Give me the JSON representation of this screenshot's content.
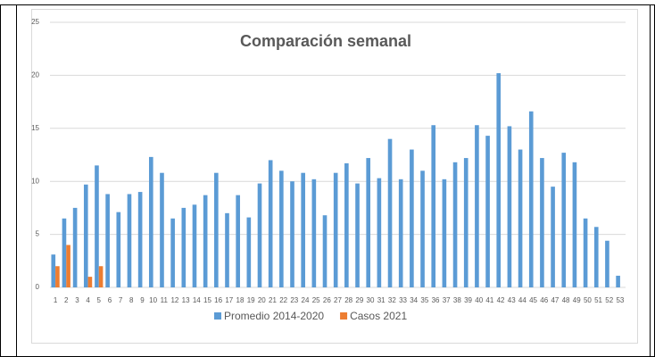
{
  "chart_data": {
    "type": "bar",
    "title": "Comparación semanal",
    "categories": [
      "1",
      "2",
      "3",
      "4",
      "5",
      "6",
      "7",
      "8",
      "9",
      "10",
      "11",
      "12",
      "13",
      "14",
      "15",
      "16",
      "17",
      "18",
      "19",
      "20",
      "21",
      "22",
      "23",
      "24",
      "25",
      "26",
      "27",
      "28",
      "29",
      "30",
      "31",
      "32",
      "33",
      "34",
      "35",
      "36",
      "37",
      "38",
      "39",
      "40",
      "41",
      "42",
      "43",
      "44",
      "45",
      "46",
      "47",
      "48",
      "49",
      "50",
      "51",
      "52",
      "53"
    ],
    "series": [
      {
        "name": "Promedio 2014-2020",
        "color": "#5b9bd5",
        "values": [
          3.1,
          6.5,
          7.5,
          9.7,
          11.5,
          8.8,
          7.1,
          8.8,
          9.0,
          12.3,
          10.8,
          6.5,
          7.5,
          7.8,
          8.7,
          10.8,
          7.0,
          8.7,
          6.6,
          9.8,
          12.0,
          11.0,
          10.0,
          10.8,
          10.2,
          6.8,
          10.8,
          11.7,
          9.8,
          12.2,
          10.3,
          14.0,
          10.2,
          13.0,
          11.0,
          15.3,
          10.2,
          11.8,
          12.2,
          15.3,
          14.3,
          20.2,
          15.2,
          13.0,
          16.6,
          12.2,
          9.5,
          12.7,
          11.8,
          6.5,
          5.7,
          4.4,
          1.1
        ]
      },
      {
        "name": "Casos 2021",
        "color": "#ed7d31",
        "values": [
          2,
          4,
          null,
          1,
          2,
          null,
          null,
          null,
          null,
          null,
          null,
          null,
          null,
          null,
          null,
          null,
          null,
          null,
          null,
          null,
          null,
          null,
          null,
          null,
          null,
          null,
          null,
          null,
          null,
          null,
          null,
          null,
          null,
          null,
          null,
          null,
          null,
          null,
          null,
          null,
          null,
          null,
          null,
          null,
          null,
          null,
          null,
          null,
          null,
          null,
          null,
          null,
          null
        ]
      }
    ],
    "ylim": [
      0,
      25
    ],
    "yticks": [
      0,
      5,
      10,
      15,
      20,
      25
    ],
    "grid": true,
    "legend": "bottom"
  }
}
